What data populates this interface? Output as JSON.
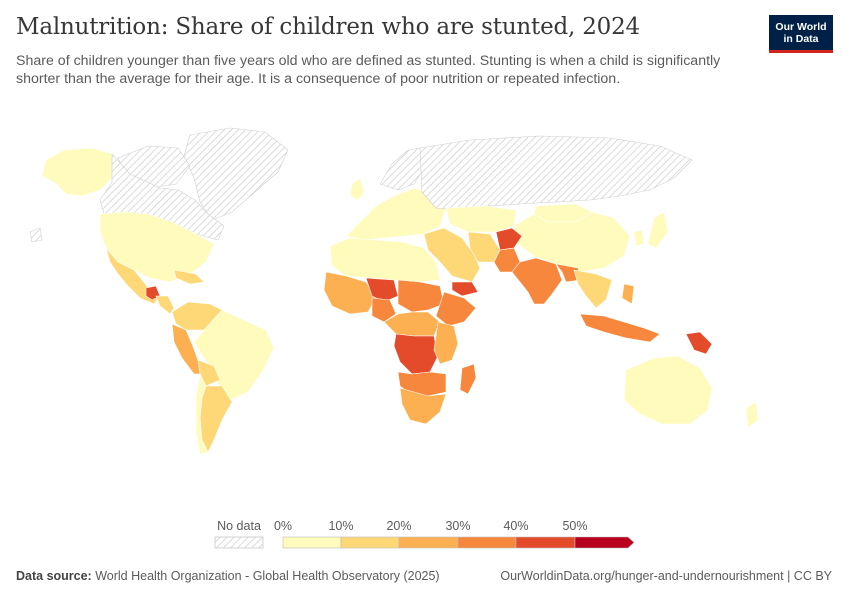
{
  "header": {
    "title": "Malnutrition: Share of children who are stunted, 2024",
    "subtitle": "Share of children younger than five years old who are defined as stunted. Stunting is when a child is significantly shorter than the average for their age. It is a consequence of poor nutrition or repeated infection."
  },
  "logo": {
    "line1": "Our World",
    "line2": "in Data"
  },
  "legend": {
    "no_data_label": "No data",
    "ticks": [
      "0%",
      "10%",
      "20%",
      "30%",
      "40%",
      "50%"
    ],
    "colors": [
      "#fffbbc",
      "#fed777",
      "#fdb052",
      "#f6873c",
      "#e44b2a",
      "#b8001f"
    ]
  },
  "colors": {
    "no_data": "#e6e6e6",
    "border": "#ffffff"
  },
  "footer": {
    "source_label": "Data source:",
    "source_text": "World Health Organization - Global Health Observatory (2025)",
    "url_license": "OurWorldinData.org/hunger-and-undernourishment | CC BY"
  }
}
